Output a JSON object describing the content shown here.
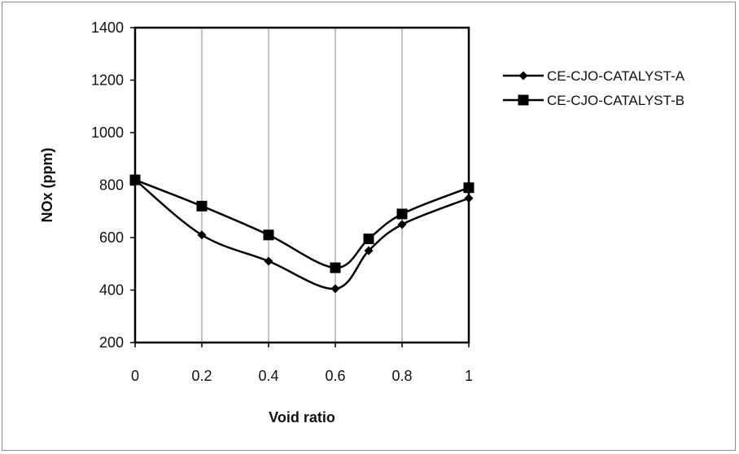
{
  "chart_data": {
    "type": "line",
    "title": "",
    "xlabel": "Void ratio",
    "ylabel": "NOx (ppm)",
    "xlim": [
      0,
      1
    ],
    "ylim": [
      200,
      1400
    ],
    "xticks": [
      "0",
      "0.2",
      "0.4",
      "0.6",
      "0.8",
      "1"
    ],
    "xtick_values": [
      0,
      0.2,
      0.4,
      0.6,
      0.8,
      1
    ],
    "yticks": [
      "200",
      "400",
      "600",
      "800",
      "1000",
      "1200",
      "1400"
    ],
    "ytick_values": [
      200,
      400,
      600,
      800,
      1000,
      1200,
      1400
    ],
    "grid": "vertical",
    "legend_position": "right",
    "series": [
      {
        "name": "CE-CJO-CATALYST-A",
        "marker": "diamond",
        "color": "#000000",
        "x": [
          0,
          0.2,
          0.4,
          0.6,
          0.7,
          0.8,
          1
        ],
        "y": [
          820,
          610,
          510,
          405,
          550,
          650,
          750
        ]
      },
      {
        "name": "CE-CJO-CATALYST-B",
        "marker": "square",
        "color": "#000000",
        "x": [
          0,
          0.2,
          0.4,
          0.6,
          0.7,
          0.8,
          1
        ],
        "y": [
          820,
          720,
          610,
          485,
          595,
          690,
          790
        ]
      }
    ]
  }
}
